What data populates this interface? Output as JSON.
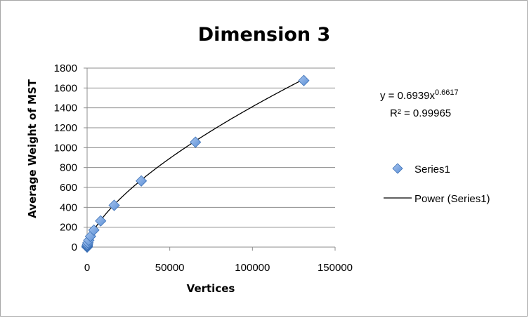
{
  "chart_data": {
    "type": "scatter",
    "title": "Dimension 3",
    "xlabel": "Vertices",
    "ylabel": "Average Weight of MST",
    "xlim": [
      0,
      150000
    ],
    "ylim": [
      0,
      1800
    ],
    "x_ticks": [
      0,
      50000,
      100000,
      150000
    ],
    "y_ticks": [
      0,
      200,
      400,
      600,
      800,
      1000,
      1200,
      1400,
      1600,
      1800
    ],
    "grid": "horizontal",
    "legend_position": "right",
    "series": [
      {
        "name": "Series1",
        "marker": "diamond",
        "color": "#5b8fd6",
        "points": [
          {
            "x": 1,
            "y": 0.7
          },
          {
            "x": 2,
            "y": 1.1
          },
          {
            "x": 4,
            "y": 1.8
          },
          {
            "x": 8,
            "y": 2.8
          },
          {
            "x": 16,
            "y": 4.4
          },
          {
            "x": 32,
            "y": 7
          },
          {
            "x": 64,
            "y": 11
          },
          {
            "x": 128,
            "y": 17
          },
          {
            "x": 256,
            "y": 27
          },
          {
            "x": 512,
            "y": 43
          },
          {
            "x": 1024,
            "y": 68
          },
          {
            "x": 2048,
            "y": 108
          },
          {
            "x": 4096,
            "y": 171
          },
          {
            "x": 8192,
            "y": 263
          },
          {
            "x": 16384,
            "y": 420
          },
          {
            "x": 32768,
            "y": 665
          },
          {
            "x": 65536,
            "y": 1055
          },
          {
            "x": 131072,
            "y": 1675
          }
        ]
      }
    ],
    "trendline": {
      "name": "Power (Series1)",
      "type": "power",
      "coefficient": 0.6939,
      "exponent": 0.6617,
      "equation_base": "y = 0.6939x",
      "equation_exponent": "0.6617",
      "r_squared": "R² = 0.99965",
      "color": "#000000"
    }
  }
}
